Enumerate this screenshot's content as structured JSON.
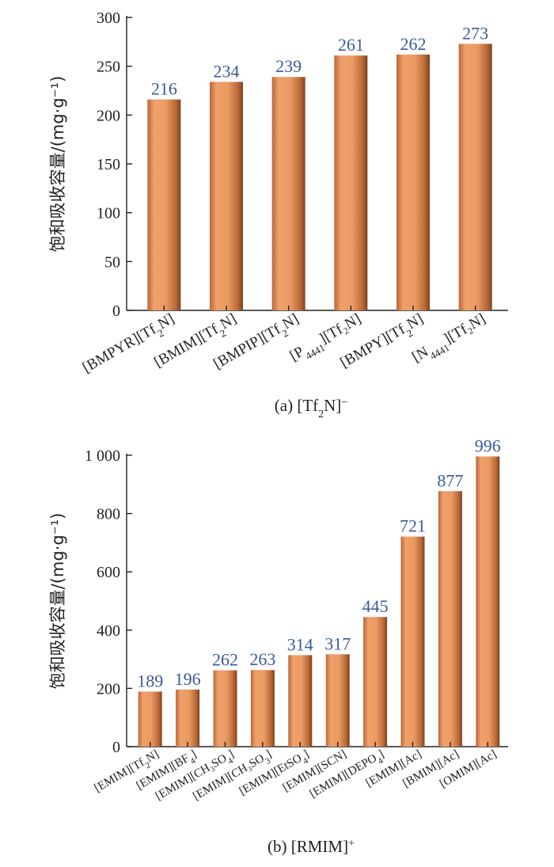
{
  "chart_data": [
    {
      "type": "bar",
      "ylabel": "饱和吸收容量/(mg·g⁻¹)",
      "ylim": [
        0,
        300
      ],
      "yticks": [
        "0",
        "50",
        "100",
        "150",
        "200",
        "250",
        "300"
      ],
      "categories": [
        {
          "base": "[BMPYR][Tf",
          "sub": "2",
          "post": "N]"
        },
        {
          "base": "[BMIM][Tf",
          "sub": "2",
          "post": "N]"
        },
        {
          "base": "[BMPIP][Tf",
          "sub": "2",
          "post": "N]"
        },
        {
          "base": "[P",
          "sub": "4441",
          "post": "][Tf₂N]"
        },
        {
          "base": "[BMPY][Tf",
          "sub": "2",
          "post": "N]"
        },
        {
          "base": "[N",
          "sub": "4441",
          "post": "][Tf₂N]"
        }
      ],
      "values": [
        216,
        234,
        239,
        261,
        262,
        273
      ],
      "caption": {
        "base": "(a) [Tf",
        "sub": "2",
        "post": "N]",
        "sup": "−"
      },
      "colors": {
        "bar_light": "#f2a36c",
        "bar_dark": "#8a4b22",
        "value_label": "#3b5a9a"
      }
    },
    {
      "type": "bar",
      "ylabel": "饱和吸收容量/(mg·g⁻¹)",
      "ylim": [
        0,
        1000
      ],
      "yticks": [
        "0",
        "200",
        "400",
        "600",
        "800",
        "1 000"
      ],
      "categories": [
        {
          "base": "[EMIM][Tf",
          "sub": "2",
          "post": "N]"
        },
        {
          "base": "[EMIM][BF",
          "sub": "4",
          "post": "]"
        },
        {
          "base": "[EMIM][CH₃SO",
          "sub": "4",
          "post": "]"
        },
        {
          "base": "[EMIM][CH₃SO",
          "sub": "3",
          "post": "]"
        },
        {
          "base": "[EMIM][EtSO",
          "sub": "4",
          "post": "]"
        },
        {
          "base": "[EMIM][SCN]",
          "sub": "",
          "post": ""
        },
        {
          "base": "[EMIM][DEPO",
          "sub": "4",
          "post": "]"
        },
        {
          "base": "[EMIM][Ac]",
          "sub": "",
          "post": ""
        },
        {
          "base": "[BMIM][Ac]",
          "sub": "",
          "post": ""
        },
        {
          "base": "[OMIM][Ac]",
          "sub": "",
          "post": ""
        }
      ],
      "values": [
        189,
        196,
        262,
        263,
        314,
        317,
        445,
        721,
        877,
        996
      ],
      "caption": {
        "base": "(b) [RMIM]",
        "sub": "",
        "post": "",
        "sup": "+"
      },
      "colors": {
        "bar_light": "#f2a36c",
        "bar_dark": "#8a4b22",
        "value_label": "#3b5a9a"
      }
    }
  ]
}
